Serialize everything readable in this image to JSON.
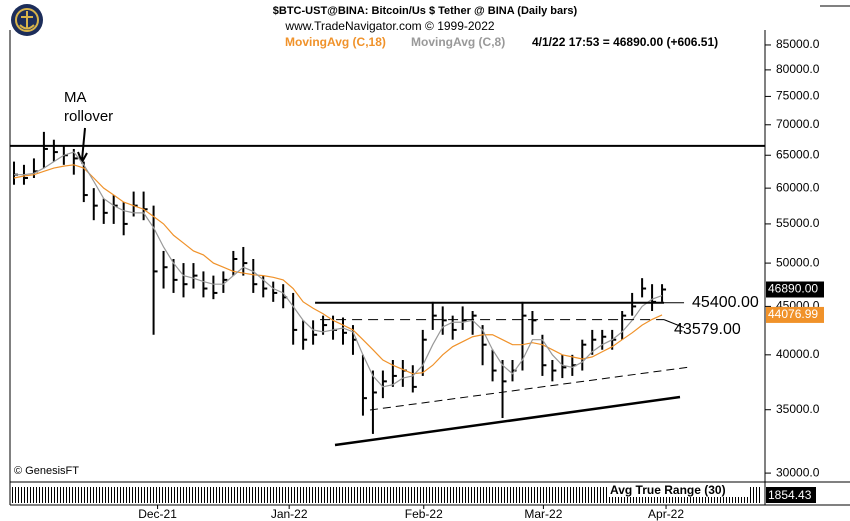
{
  "chart_data": {
    "type": "ohlc",
    "title": "$BTC-UST@BINA:  Bitcoin/Us $ Tether @ BINA  (Daily bars)",
    "subtitle": "www.TradeNavigator.com © 1999-2022",
    "status": "4/1/22 17:53 = 46890.00 (+606.51)",
    "copyright": "© GenesisFT",
    "annotation": [
      "MA",
      "rollover"
    ],
    "log_scale": true,
    "ylim": [
      29500,
      88150
    ],
    "yticks": [
      {
        "value": 30000,
        "label": "30000.0"
      },
      {
        "value": 35000,
        "label": "35000.0"
      },
      {
        "value": 40000,
        "label": "40000.0"
      },
      {
        "value": 45000,
        "label": "45000.0"
      },
      {
        "value": 50000,
        "label": "50000.0"
      },
      {
        "value": 55000,
        "label": "55000.0"
      },
      {
        "value": 60000,
        "label": "60000.0"
      },
      {
        "value": 65000,
        "label": "65000.0"
      },
      {
        "value": 70000,
        "label": "70000.0"
      },
      {
        "value": 75000,
        "label": "75000.0"
      },
      {
        "value": 80000,
        "label": "80000.0"
      },
      {
        "value": 85000,
        "label": "85000.0"
      }
    ],
    "xticks": [
      {
        "value": 14.4,
        "label": "Dec-21"
      },
      {
        "value": 27.6,
        "label": "Jan-22"
      },
      {
        "value": 41.1,
        "label": "Feb-22"
      },
      {
        "value": 53.1,
        "label": "Mar-22"
      },
      {
        "value": 65.4,
        "label": "Apr-22"
      }
    ],
    "price": {
      "color": "#000000",
      "close_label": "46890.00",
      "high": [
        64000,
        63500,
        64500,
        68800,
        67500,
        66500,
        66000,
        64000,
        60000,
        58500,
        59000,
        58000,
        59500,
        59500,
        57500,
        51500,
        50500,
        50000,
        50000,
        49000,
        48500,
        49000,
        51500,
        52000,
        50500,
        48500,
        47800,
        47500,
        46500,
        43500,
        43500,
        44000,
        44000,
        43800,
        43000,
        40000,
        38500,
        38500,
        39500,
        39500,
        39000,
        42500,
        45500,
        45000,
        44000,
        45000,
        44500,
        43000,
        40500,
        39500,
        39500,
        45500,
        44500,
        42000,
        39500,
        40000,
        40000,
        41500,
        42500,
        42500,
        42500,
        44500,
        46500,
        48200,
        47500,
        47500
      ],
      "low": [
        60500,
        60500,
        61500,
        63000,
        64000,
        63500,
        62000,
        58000,
        55500,
        55000,
        55000,
        53500,
        56000,
        55500,
        42000,
        47000,
        46500,
        46000,
        47000,
        46000,
        45800,
        46500,
        48500,
        48500,
        46500,
        46000,
        45500,
        44800,
        41000,
        40500,
        41000,
        42000,
        41500,
        41000,
        40000,
        34500,
        33000,
        36000,
        37000,
        37000,
        36500,
        38000,
        42500,
        42000,
        41500,
        42500,
        42000,
        39000,
        37500,
        34300,
        37500,
        38500,
        42000,
        38000,
        37500,
        37800,
        38000,
        38500,
        40000,
        40500,
        40500,
        41500,
        44000,
        46000,
        44500,
        45500
      ],
      "close": [
        62000,
        61500,
        62500,
        66000,
        65500,
        65000,
        64500,
        59000,
        57500,
        56500,
        57500,
        55000,
        57500,
        57000,
        49000,
        49500,
        48000,
        47500,
        48500,
        47000,
        46500,
        48000,
        50500,
        50000,
        47500,
        47000,
        46500,
        46000,
        42500,
        41500,
        42000,
        43000,
        42500,
        42200,
        41500,
        36000,
        36500,
        37500,
        38000,
        38500,
        37000,
        41500,
        44000,
        43500,
        42500,
        43500,
        44000,
        41000,
        38500,
        37500,
        38500,
        44000,
        43500,
        39000,
        38500,
        38800,
        39000,
        41000,
        41500,
        41800,
        41500,
        44000,
        45000,
        47000,
        45500,
        46890
      ]
    },
    "series": [
      {
        "name": "MovingAvg (C,18)",
        "color": "#f0922a",
        "last_label": "44076.99",
        "values": [
          61500,
          61800,
          62000,
          62500,
          63000,
          63300,
          63500,
          63000,
          61500,
          60000,
          59000,
          58000,
          57500,
          57000,
          56000,
          55000,
          53500,
          52500,
          51500,
          51000,
          50000,
          49500,
          49000,
          48800,
          48600,
          48500,
          48300,
          48000,
          47000,
          45500,
          44800,
          44200,
          43500,
          43000,
          42500,
          41500,
          40500,
          39500,
          39000,
          38600,
          38200,
          38300,
          39000,
          40000,
          40800,
          41300,
          41800,
          42000,
          42000,
          41500,
          41000,
          41000,
          41200,
          41000,
          40500,
          40000,
          39800,
          39600,
          39800,
          40300,
          40800,
          41500,
          42200,
          43000,
          43600,
          44076.99
        ]
      },
      {
        "name": "MovingAvg (C,8)",
        "color": "#999999",
        "values": [
          62000,
          62000,
          62200,
          63000,
          64000,
          65000,
          65500,
          63500,
          61000,
          58500,
          57500,
          56800,
          56500,
          56500,
          54500,
          52000,
          50000,
          48500,
          48200,
          47800,
          47500,
          47500,
          48500,
          49500,
          49000,
          48000,
          47000,
          46500,
          45000,
          43500,
          42500,
          42300,
          42500,
          42700,
          42300,
          40000,
          38000,
          37000,
          37200,
          37800,
          38000,
          39000,
          41000,
          42800,
          43300,
          43300,
          43500,
          42500,
          40500,
          39000,
          38200,
          39500,
          41500,
          41500,
          40000,
          39000,
          38800,
          39300,
          40300,
          41000,
          41500,
          42300,
          43500,
          45000,
          45800,
          46200
        ]
      }
    ],
    "levels": [
      {
        "value": 66500,
        "start": 0,
        "end": 76
      },
      {
        "value": 45400,
        "label": "45400.00",
        "start": 30.6,
        "end": 65.2
      },
      {
        "value": 43579,
        "label": "43579.00",
        "start": 31.1,
        "end": 65.2,
        "dashed": true
      }
    ],
    "atr": {
      "title": "Avg True Range (30)",
      "last_label": "1854.43"
    }
  }
}
